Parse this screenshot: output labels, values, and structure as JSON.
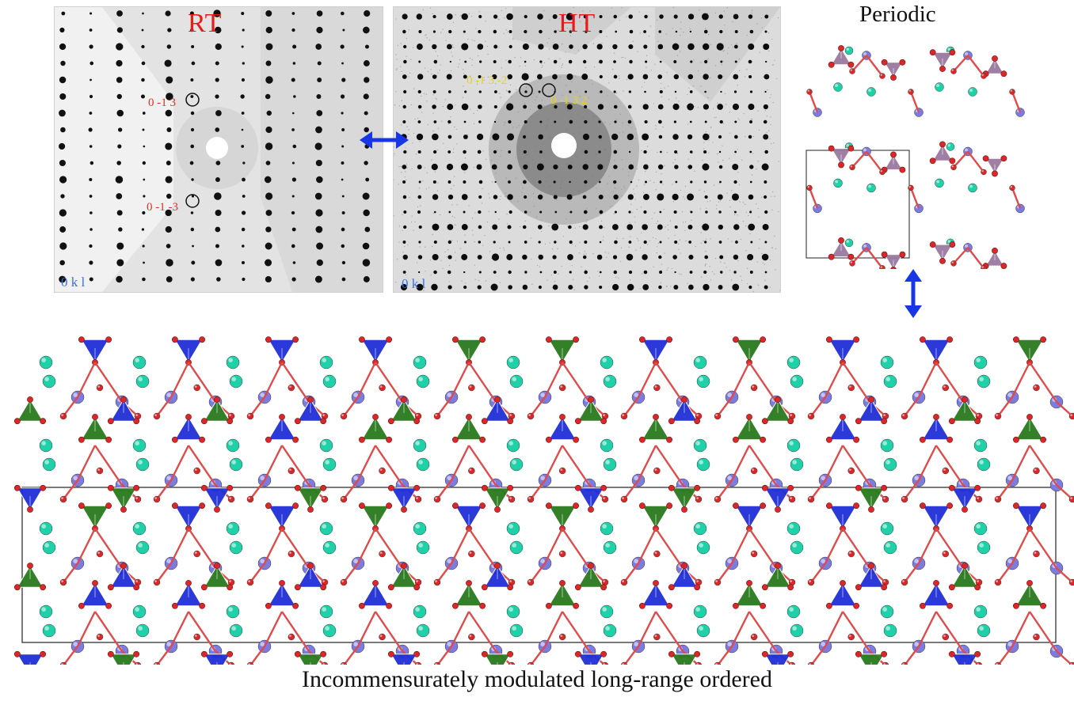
{
  "panels": {
    "rt": {
      "title": "RT",
      "zone_axis": "0 k l",
      "reflections": [
        "0 -1 3",
        "0 -1 -3"
      ]
    },
    "ht": {
      "title": "HT",
      "zone_axis": "0 k l",
      "reflections": [
        "0 -1 3 -2",
        "0 -1 3 2"
      ]
    }
  },
  "periodic": {
    "title": "Periodic"
  },
  "modulated": {
    "caption": "Incommensurately modulated long-range ordered"
  },
  "colors": {
    "title_red": "#e81b1b",
    "reflection_red": "#e0302a",
    "reflection_yellow": "#e6d21a",
    "zone_blue": "#3a6fe0",
    "arrow_blue": "#1736e6",
    "tetra_blue": "#1f2fd6",
    "tetra_green": "#2a7a1e",
    "tetra_mauve": "#9a7aa0",
    "oxygen_red": "#d8282a",
    "cation_cyan": "#1fd1a8",
    "silicon_lavender": "#7b7be0"
  }
}
